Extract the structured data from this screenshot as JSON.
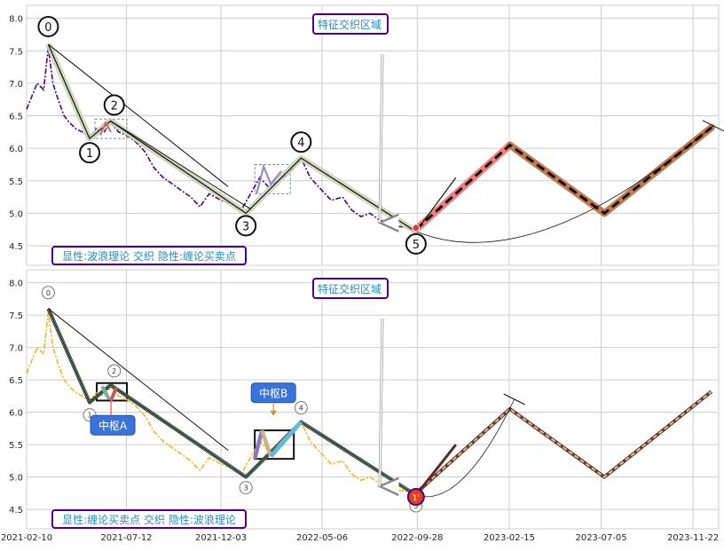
{
  "colors": {
    "panel_bg": "#ffffff",
    "grid": "#cccccc",
    "axis_text": "#262626",
    "price_top": "#4b0082",
    "price_bottom": "#f0b429",
    "wave_band": "#c8d2b4",
    "forecast_red": "#f08080",
    "forecast_brown": "#c27a52",
    "label_border": "#4b0082",
    "label_text": "#2a8ab8",
    "hub_fill": "#3a74d8"
  },
  "chart_data": [
    {
      "type": "line",
      "panel": "top",
      "ylim": [
        4.2,
        8.2
      ],
      "yticks": [
        "4.5",
        "5.0",
        "5.5",
        "6.0",
        "6.5",
        "7.0",
        "7.5",
        "8.0"
      ],
      "xticks": [
        "2021-02-10",
        "2021-07-12",
        "2021-12-03",
        "2022-05-06",
        "2022-09-28",
        "2023-02-15",
        "2023-07-05",
        "2023-11-22"
      ],
      "x_range": [
        "2021-02-10",
        "2023-12-31"
      ],
      "grid": true,
      "annotations": {
        "feature_zone": "特征交织区域",
        "panel_label": "显性:波浪理论 交织 隐性:缠论买卖点"
      },
      "wave_points": [
        {
          "label": "0",
          "date": "2021-03-15",
          "value": 7.6
        },
        {
          "label": "1",
          "date": "2021-05-17",
          "value": 6.15
        },
        {
          "label": "2",
          "date": "2021-06-18",
          "value": 6.42
        },
        {
          "label": "3",
          "date": "2022-01-10",
          "value": 5.0
        },
        {
          "label": "4",
          "date": "2022-04-04",
          "value": 5.85
        },
        {
          "label": "5",
          "date": "2022-09-26",
          "value": 4.72
        }
      ],
      "forecast": [
        {
          "date": "2022-09-26",
          "value": 4.75
        },
        {
          "date": "2023-02-16",
          "value": 6.05
        },
        {
          "date": "2023-07-10",
          "value": 5.0
        },
        {
          "date": "2023-12-20",
          "value": 6.32
        }
      ],
      "price_series": [
        {
          "date": "2021-02-10",
          "value": 6.6
        },
        {
          "date": "2021-02-18",
          "value": 6.8
        },
        {
          "date": "2021-02-26",
          "value": 7.0
        },
        {
          "date": "2021-03-08",
          "value": 6.9
        },
        {
          "date": "2021-03-15",
          "value": 7.55
        },
        {
          "date": "2021-03-22",
          "value": 7.0
        },
        {
          "date": "2021-03-30",
          "value": 6.75
        },
        {
          "date": "2021-04-08",
          "value": 6.5
        },
        {
          "date": "2021-04-16",
          "value": 6.4
        },
        {
          "date": "2021-04-26",
          "value": 6.3
        },
        {
          "date": "2021-05-06",
          "value": 6.25
        },
        {
          "date": "2021-05-17",
          "value": 6.18
        },
        {
          "date": "2021-05-27",
          "value": 6.3
        },
        {
          "date": "2021-06-08",
          "value": 6.25
        },
        {
          "date": "2021-06-18",
          "value": 6.4
        },
        {
          "date": "2021-06-30",
          "value": 6.25
        },
        {
          "date": "2021-07-12",
          "value": 6.2
        },
        {
          "date": "2021-07-26",
          "value": 6.1
        },
        {
          "date": "2021-08-09",
          "value": 5.95
        },
        {
          "date": "2021-08-23",
          "value": 5.7
        },
        {
          "date": "2021-09-06",
          "value": 5.55
        },
        {
          "date": "2021-09-20",
          "value": 5.45
        },
        {
          "date": "2021-10-04",
          "value": 5.35
        },
        {
          "date": "2021-10-18",
          "value": 5.25
        },
        {
          "date": "2021-11-01",
          "value": 5.1
        },
        {
          "date": "2021-11-15",
          "value": 5.3
        },
        {
          "date": "2021-12-03",
          "value": 5.2
        },
        {
          "date": "2021-12-17",
          "value": 5.15
        },
        {
          "date": "2022-01-03",
          "value": 5.05
        },
        {
          "date": "2022-01-17",
          "value": 5.3
        },
        {
          "date": "2022-01-31",
          "value": 5.55
        },
        {
          "date": "2022-02-14",
          "value": 5.4
        },
        {
          "date": "2022-02-28",
          "value": 5.5
        },
        {
          "date": "2022-03-14",
          "value": 5.6
        },
        {
          "date": "2022-03-28",
          "value": 5.75
        },
        {
          "date": "2022-04-04",
          "value": 5.85
        },
        {
          "date": "2022-04-18",
          "value": 5.55
        },
        {
          "date": "2022-05-06",
          "value": 5.35
        },
        {
          "date": "2022-05-20",
          "value": 5.2
        },
        {
          "date": "2022-06-06",
          "value": 5.25
        },
        {
          "date": "2022-06-20",
          "value": 5.05
        },
        {
          "date": "2022-07-04",
          "value": 4.95
        },
        {
          "date": "2022-07-18",
          "value": 5.0
        },
        {
          "date": "2022-08-01",
          "value": 4.9
        },
        {
          "date": "2022-08-15",
          "value": 4.85
        },
        {
          "date": "2022-08-29",
          "value": 4.8
        },
        {
          "date": "2022-09-12",
          "value": 4.78
        },
        {
          "date": "2022-09-26",
          "value": 4.72
        }
      ]
    },
    {
      "type": "line",
      "panel": "bottom",
      "ylim": [
        4.2,
        8.2
      ],
      "yticks": [
        "4.5",
        "5.0",
        "5.5",
        "6.0",
        "6.5",
        "7.0",
        "7.5",
        "8.0"
      ],
      "xticks": [
        "2021-02-10",
        "2021-07-12",
        "2021-12-03",
        "2022-05-06",
        "2022-09-28",
        "2023-02-15",
        "2023-07-05",
        "2023-11-22"
      ],
      "x_range": [
        "2021-02-10",
        "2023-12-31"
      ],
      "grid": true,
      "annotations": {
        "feature_zone": "特征交织区域",
        "panel_label": "显性:缠论买卖点 交织 隐性:波浪理论",
        "hub_a": "中枢A",
        "hub_b": "中枢B",
        "buy_point": "1'"
      },
      "wave_points": [
        {
          "label": "0",
          "date": "2021-03-15",
          "value": 7.6
        },
        {
          "label": "1",
          "date": "2021-05-17",
          "value": 6.15
        },
        {
          "label": "2",
          "date": "2021-06-18",
          "value": 6.42
        },
        {
          "label": "3",
          "date": "2022-01-10",
          "value": 5.0
        },
        {
          "label": "4",
          "date": "2022-04-04",
          "value": 5.85
        },
        {
          "label": "5",
          "date": "2022-09-26",
          "value": 4.72
        }
      ],
      "forecast": [
        {
          "date": "2022-09-26",
          "value": 4.75
        },
        {
          "date": "2023-02-16",
          "value": 6.05
        },
        {
          "date": "2023-07-10",
          "value": 5.0
        },
        {
          "date": "2023-12-20",
          "value": 6.32
        }
      ],
      "price_series": [
        {
          "date": "2021-02-10",
          "value": 6.6
        },
        {
          "date": "2021-02-18",
          "value": 6.8
        },
        {
          "date": "2021-02-26",
          "value": 7.0
        },
        {
          "date": "2021-03-08",
          "value": 6.9
        },
        {
          "date": "2021-03-15",
          "value": 7.55
        },
        {
          "date": "2021-03-22",
          "value": 7.0
        },
        {
          "date": "2021-03-30",
          "value": 6.75
        },
        {
          "date": "2021-04-08",
          "value": 6.5
        },
        {
          "date": "2021-04-16",
          "value": 6.4
        },
        {
          "date": "2021-04-26",
          "value": 6.3
        },
        {
          "date": "2021-05-06",
          "value": 6.25
        },
        {
          "date": "2021-05-17",
          "value": 6.18
        },
        {
          "date": "2021-05-27",
          "value": 6.3
        },
        {
          "date": "2021-06-08",
          "value": 6.25
        },
        {
          "date": "2021-06-18",
          "value": 6.4
        },
        {
          "date": "2021-06-30",
          "value": 6.25
        },
        {
          "date": "2021-07-12",
          "value": 6.2
        },
        {
          "date": "2021-07-26",
          "value": 6.1
        },
        {
          "date": "2021-08-09",
          "value": 5.95
        },
        {
          "date": "2021-08-23",
          "value": 5.7
        },
        {
          "date": "2021-09-06",
          "value": 5.55
        },
        {
          "date": "2021-09-20",
          "value": 5.45
        },
        {
          "date": "2021-10-04",
          "value": 5.35
        },
        {
          "date": "2021-10-18",
          "value": 5.25
        },
        {
          "date": "2021-11-01",
          "value": 5.1
        },
        {
          "date": "2021-11-15",
          "value": 5.3
        },
        {
          "date": "2021-12-03",
          "value": 5.2
        },
        {
          "date": "2021-12-17",
          "value": 5.15
        },
        {
          "date": "2022-01-03",
          "value": 5.05
        },
        {
          "date": "2022-01-17",
          "value": 5.3
        },
        {
          "date": "2022-01-31",
          "value": 5.55
        },
        {
          "date": "2022-02-14",
          "value": 5.4
        },
        {
          "date": "2022-02-28",
          "value": 5.5
        },
        {
          "date": "2022-03-14",
          "value": 5.6
        },
        {
          "date": "2022-03-28",
          "value": 5.75
        },
        {
          "date": "2022-04-04",
          "value": 5.85
        },
        {
          "date": "2022-04-18",
          "value": 5.55
        },
        {
          "date": "2022-05-06",
          "value": 5.35
        },
        {
          "date": "2022-05-20",
          "value": 5.2
        },
        {
          "date": "2022-06-06",
          "value": 5.25
        },
        {
          "date": "2022-06-20",
          "value": 5.05
        },
        {
          "date": "2022-07-04",
          "value": 4.95
        },
        {
          "date": "2022-07-18",
          "value": 5.0
        },
        {
          "date": "2022-08-01",
          "value": 4.9
        },
        {
          "date": "2022-08-15",
          "value": 4.85
        },
        {
          "date": "2022-08-29",
          "value": 4.8
        },
        {
          "date": "2022-09-12",
          "value": 4.78
        },
        {
          "date": "2022-09-26",
          "value": 4.72
        }
      ]
    }
  ]
}
